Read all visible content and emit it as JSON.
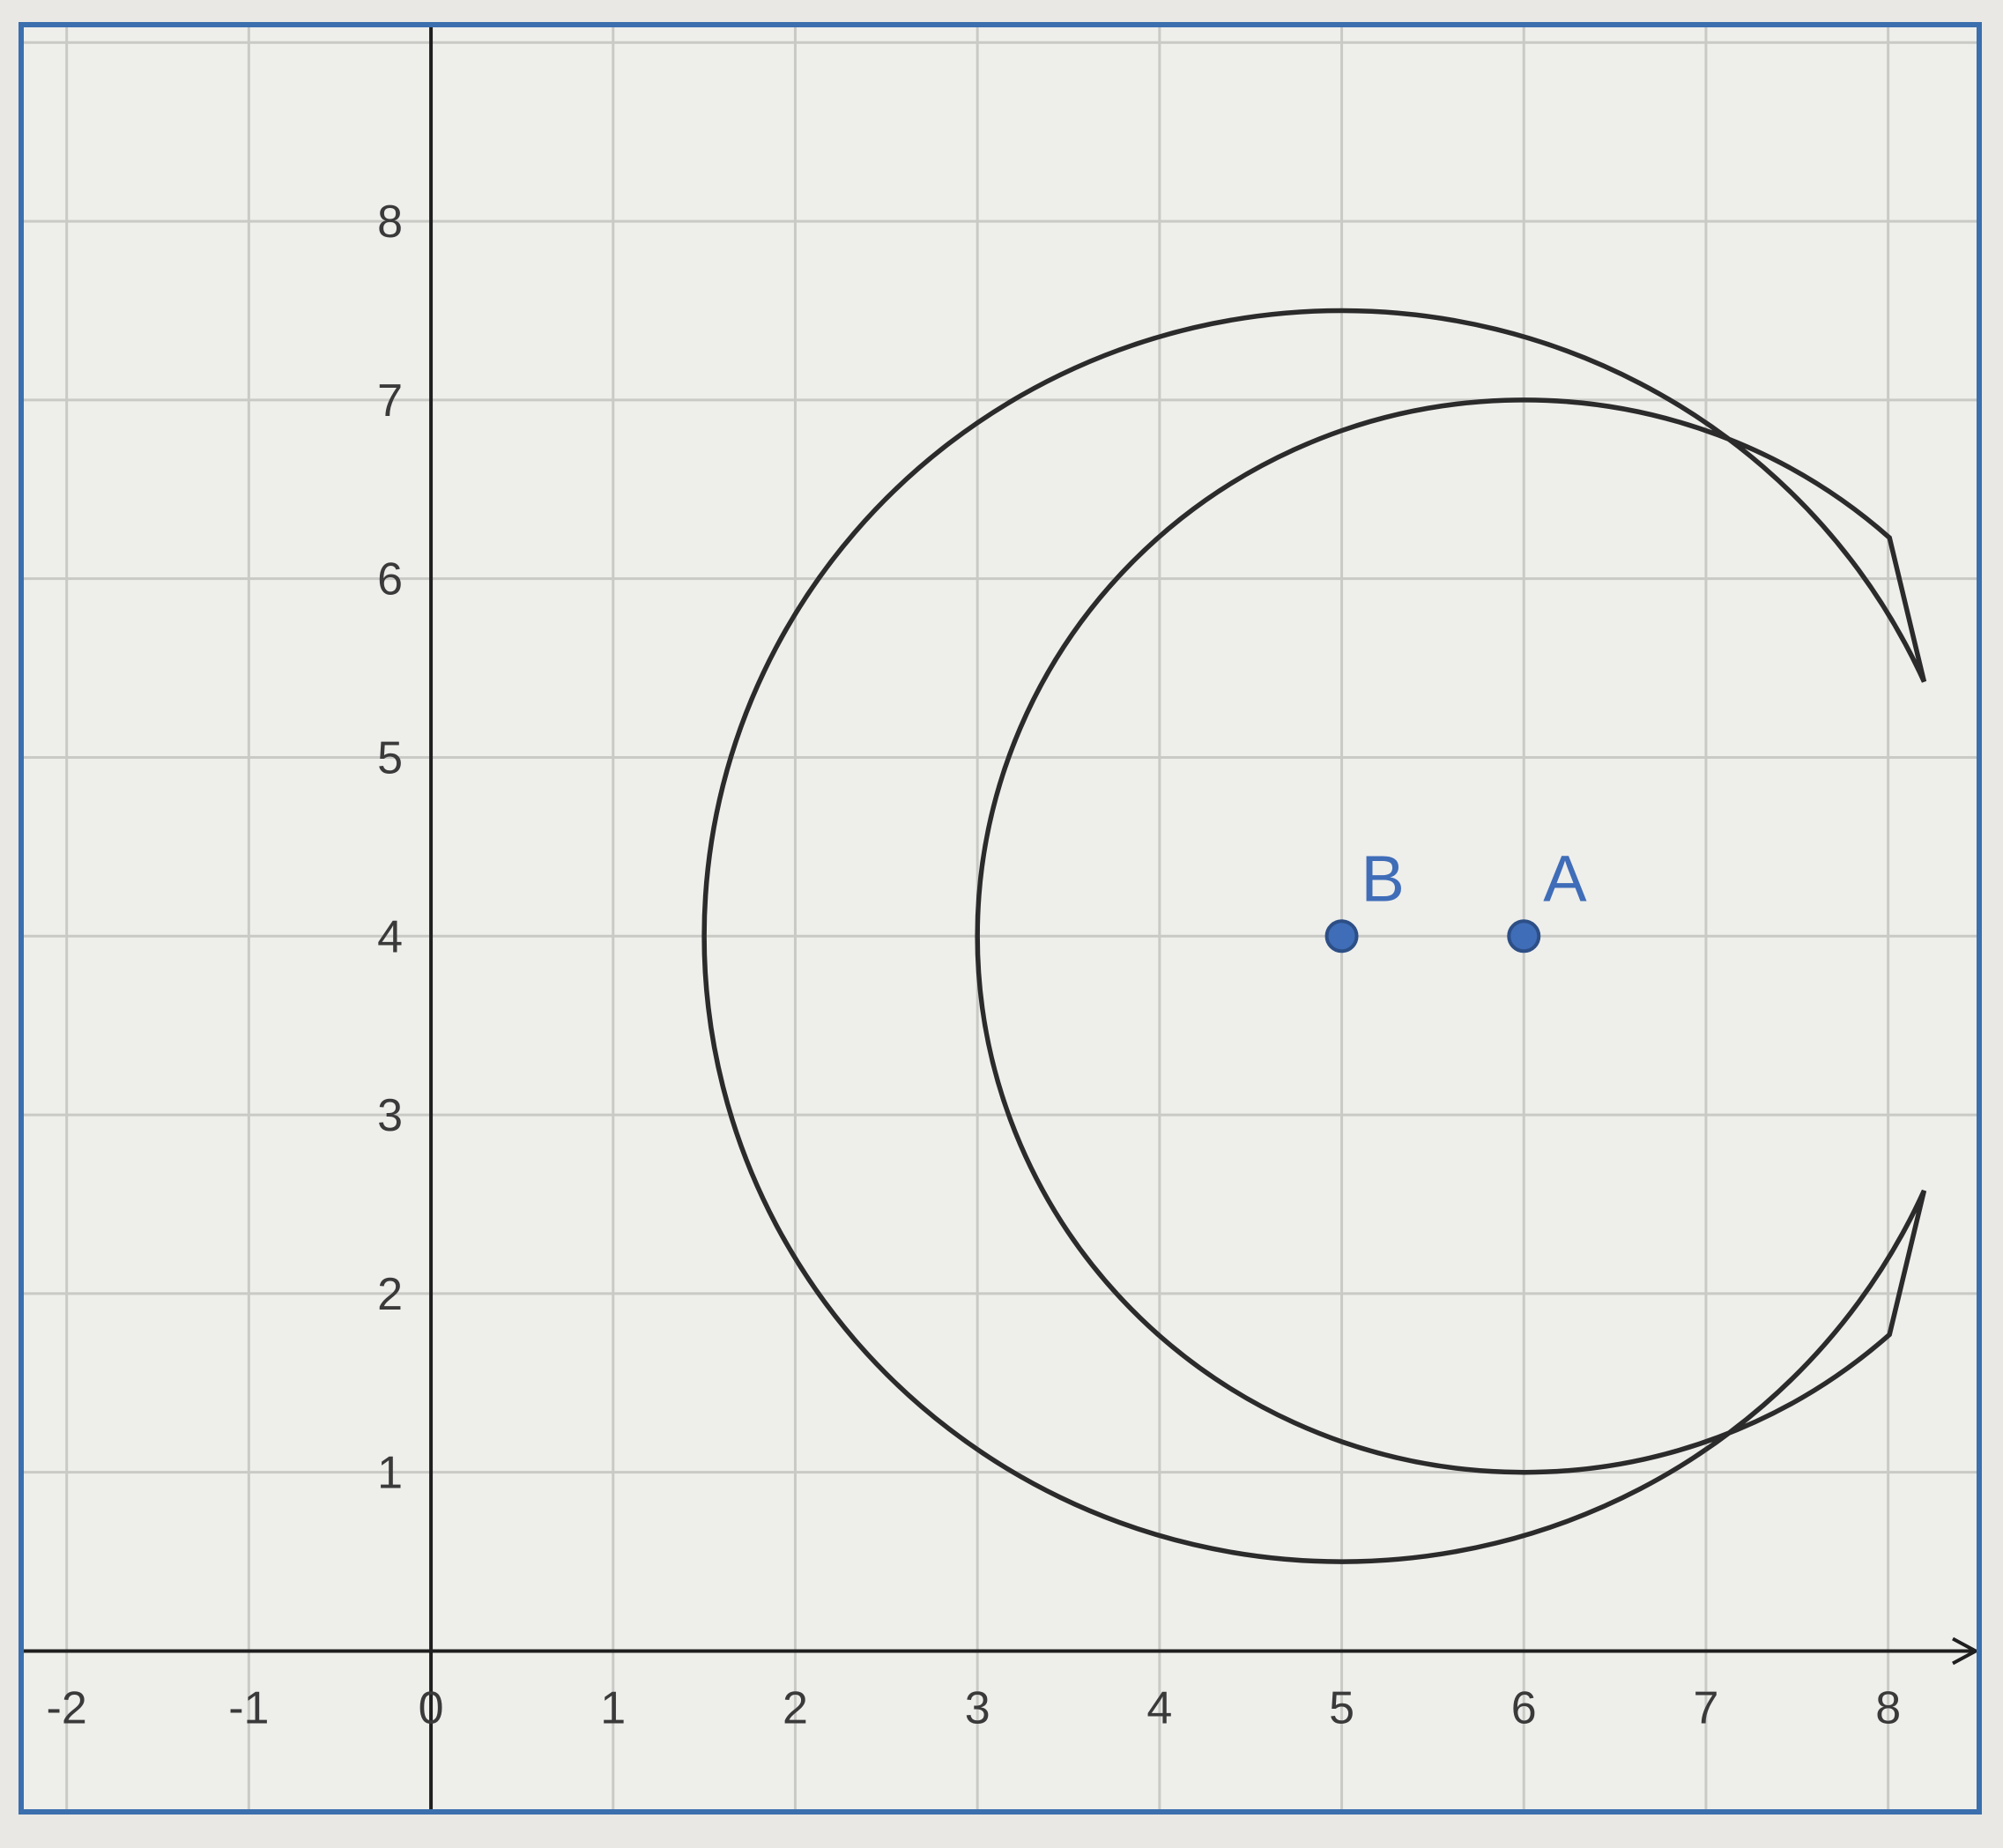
{
  "figure": {
    "frame_color": "#3b6fae",
    "grid_color": "#c9c9c6",
    "axis_color": "#1f1f1f",
    "curve_color": "#2b2b2b",
    "point_color": "#3f6db8",
    "x_range": [
      -2.25,
      8.5
    ],
    "y_range": [
      -0.9,
      9.1
    ],
    "x_tick_labels": [
      "-2",
      "-1",
      "0",
      "1",
      "2",
      "3",
      "4",
      "5",
      "6",
      "7",
      "8"
    ],
    "y_tick_labels": [
      "1",
      "2",
      "3",
      "4",
      "5",
      "6",
      "7",
      "8"
    ],
    "crescent": {
      "outer_arc": {
        "center": [
          5,
          4
        ],
        "radius": 3.5,
        "from_angle_deg": 24,
        "to_angle_deg": 336
      },
      "inner_arc": {
        "center": [
          6,
          4
        ],
        "radius": 3,
        "from_angle_deg": 48,
        "to_angle_deg": 312
      }
    },
    "points": [
      {
        "label": "B",
        "x": 5,
        "y": 4
      },
      {
        "label": "A",
        "x": 6,
        "y": 4
      }
    ]
  }
}
